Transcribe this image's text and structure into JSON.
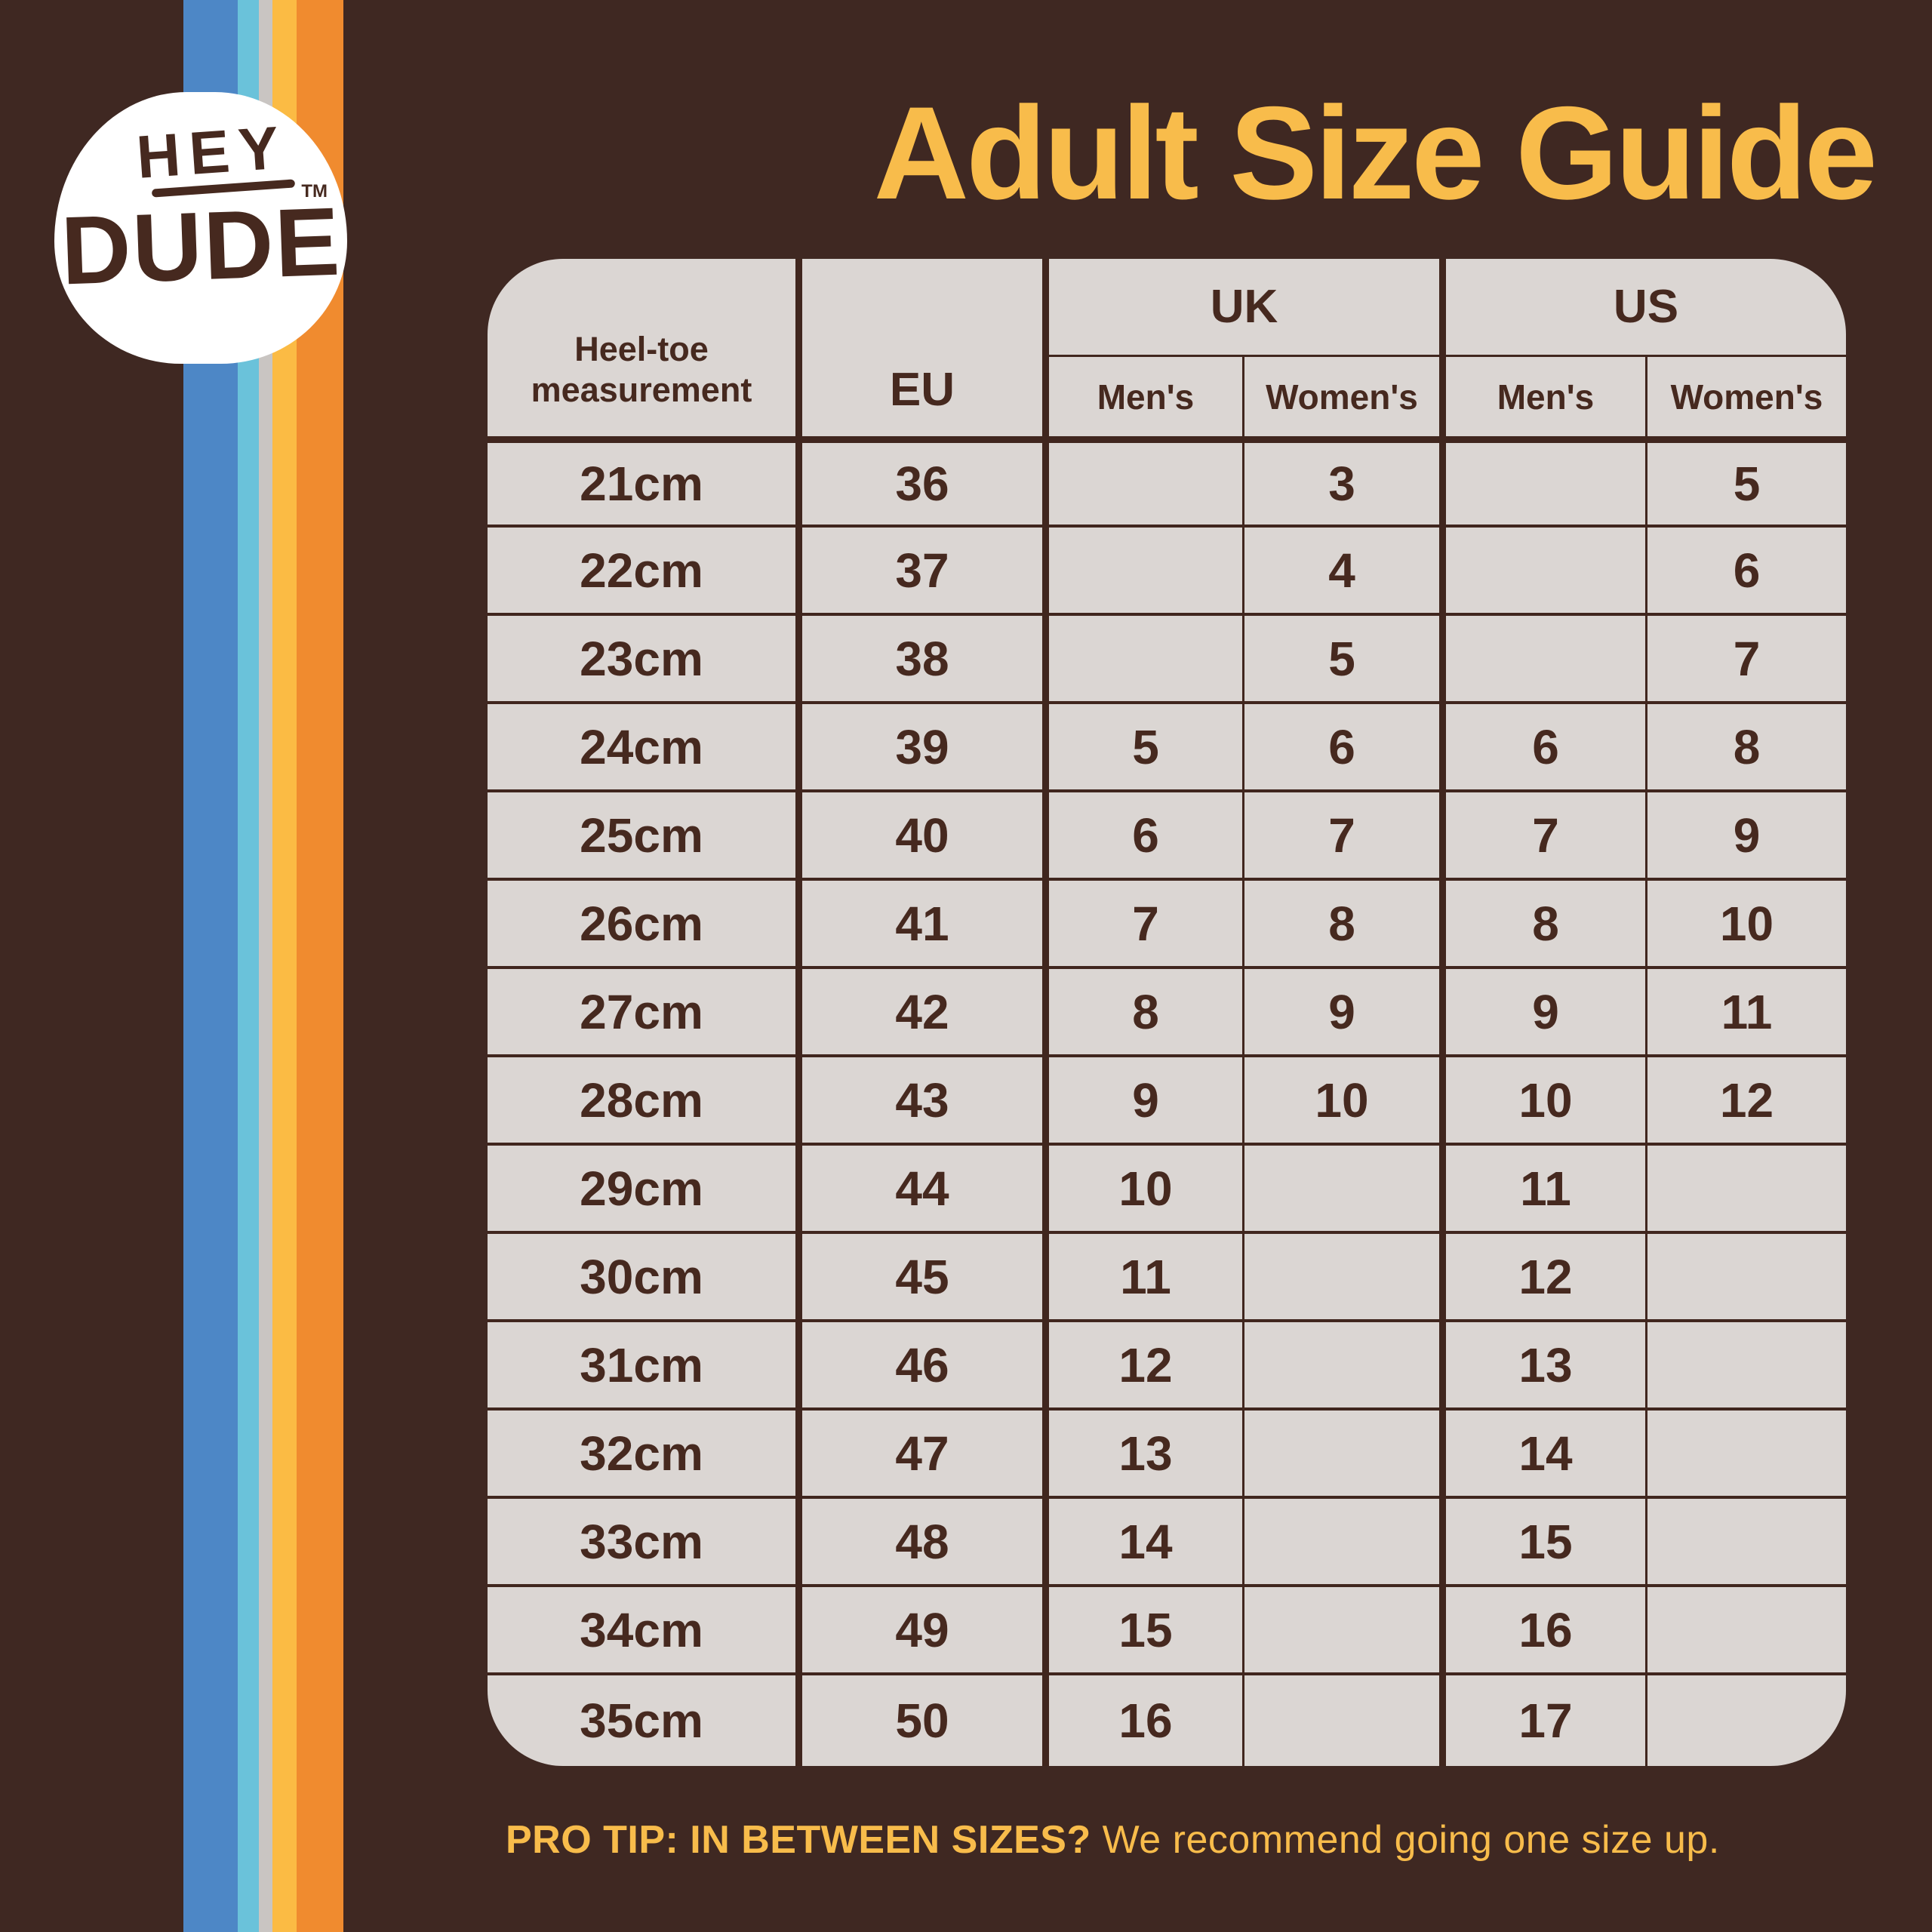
{
  "colors": {
    "background": "#3F2822",
    "table_paper": "#DBD6D3",
    "text_brown": "#46291F",
    "accent_amber": "#F8BC4B",
    "stripe_blue": "#4D87C6",
    "stripe_lightblue": "#6AC2DA",
    "stripe_gray": "#C9C5C2",
    "stripe_yellow": "#FBBB44",
    "stripe_orange": "#F08B2F"
  },
  "logo": {
    "line1": "HEY",
    "line2": "DUDE",
    "tm": "TM"
  },
  "title": "Adult Size Guide",
  "table": {
    "header": {
      "heel_toe_line1": "Heel-toe",
      "heel_toe_line2": "measurement",
      "eu": "EU",
      "uk": "UK",
      "us": "US",
      "mens": "Men's",
      "womens": "Women's"
    },
    "rows": [
      {
        "cm": "21cm",
        "eu": "36",
        "uk_m": "",
        "uk_w": "3",
        "us_m": "",
        "us_w": "5"
      },
      {
        "cm": "22cm",
        "eu": "37",
        "uk_m": "",
        "uk_w": "4",
        "us_m": "",
        "us_w": "6"
      },
      {
        "cm": "23cm",
        "eu": "38",
        "uk_m": "",
        "uk_w": "5",
        "us_m": "",
        "us_w": "7"
      },
      {
        "cm": "24cm",
        "eu": "39",
        "uk_m": "5",
        "uk_w": "6",
        "us_m": "6",
        "us_w": "8"
      },
      {
        "cm": "25cm",
        "eu": "40",
        "uk_m": "6",
        "uk_w": "7",
        "us_m": "7",
        "us_w": "9"
      },
      {
        "cm": "26cm",
        "eu": "41",
        "uk_m": "7",
        "uk_w": "8",
        "us_m": "8",
        "us_w": "10"
      },
      {
        "cm": "27cm",
        "eu": "42",
        "uk_m": "8",
        "uk_w": "9",
        "us_m": "9",
        "us_w": "11"
      },
      {
        "cm": "28cm",
        "eu": "43",
        "uk_m": "9",
        "uk_w": "10",
        "us_m": "10",
        "us_w": "12"
      },
      {
        "cm": "29cm",
        "eu": "44",
        "uk_m": "10",
        "uk_w": "",
        "us_m": "11",
        "us_w": ""
      },
      {
        "cm": "30cm",
        "eu": "45",
        "uk_m": "11",
        "uk_w": "",
        "us_m": "12",
        "us_w": ""
      },
      {
        "cm": "31cm",
        "eu": "46",
        "uk_m": "12",
        "uk_w": "",
        "us_m": "13",
        "us_w": ""
      },
      {
        "cm": "32cm",
        "eu": "47",
        "uk_m": "13",
        "uk_w": "",
        "us_m": "14",
        "us_w": ""
      },
      {
        "cm": "33cm",
        "eu": "48",
        "uk_m": "14",
        "uk_w": "",
        "us_m": "15",
        "us_w": ""
      },
      {
        "cm": "34cm",
        "eu": "49",
        "uk_m": "15",
        "uk_w": "",
        "us_m": "16",
        "us_w": ""
      },
      {
        "cm": "35cm",
        "eu": "50",
        "uk_m": "16",
        "uk_w": "",
        "us_m": "17",
        "us_w": ""
      }
    ]
  },
  "pro_tip": {
    "bold": "PRO TIP: IN BETWEEN SIZES?",
    "rest": " We recommend going one size up."
  }
}
